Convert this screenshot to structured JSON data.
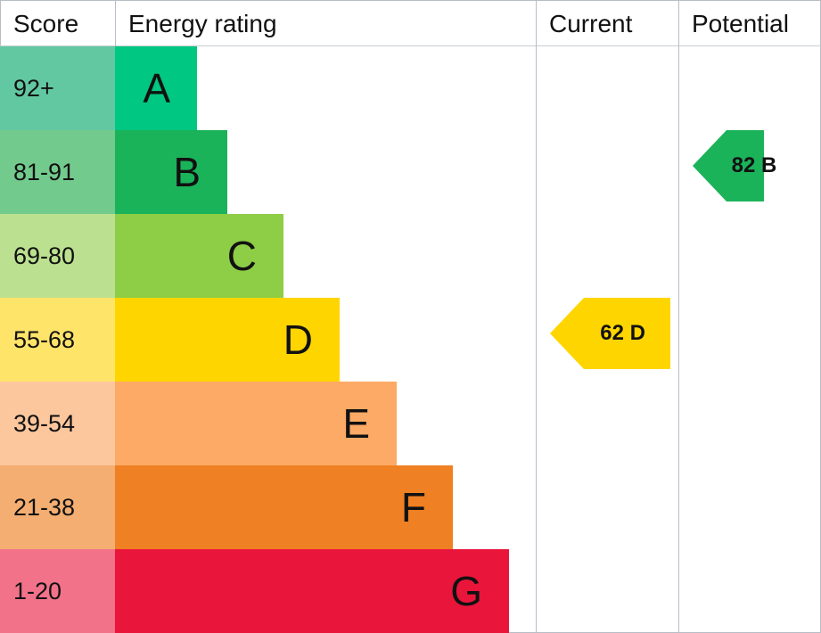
{
  "chart_data": {
    "type": "table",
    "headers": {
      "score": "Score",
      "rating": "Energy rating",
      "current": "Current",
      "potential": "Potential"
    },
    "bands": [
      {
        "band": "A",
        "score": "92+",
        "color": "#00c781",
        "score_color": "#62c8a2"
      },
      {
        "band": "B",
        "score": "81-91",
        "color": "#1bb35a",
        "score_color": "#73ca8d"
      },
      {
        "band": "C",
        "score": "69-80",
        "color": "#8dce46",
        "score_color": "#bbe08f"
      },
      {
        "band": "D",
        "score": "55-68",
        "color": "#ffd500",
        "score_color": "#ffe46a"
      },
      {
        "band": "E",
        "score": "39-54",
        "color": "#fcaa65",
        "score_color": "#fdc79d"
      },
      {
        "band": "F",
        "score": "21-38",
        "color": "#ef8023",
        "score_color": "#f4ae72"
      },
      {
        "band": "G",
        "score": "1-20",
        "color": "#e9153b",
        "score_color": "#f2728a"
      }
    ],
    "current": {
      "value": 62,
      "band": "D",
      "label": "62 D",
      "color": "#ffd500"
    },
    "potential": {
      "value": 82,
      "band": "B",
      "label": "82 B",
      "color": "#1bb35a"
    }
  }
}
